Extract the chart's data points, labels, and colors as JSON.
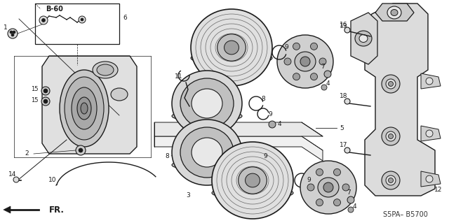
{
  "bg_color": "#ffffff",
  "diagram_code": "S5PA– B5700",
  "fr_label": "FR.",
  "bbox_label": "B-60",
  "dark": "#1a1a1a",
  "mid": "#666666",
  "light": "#aaaaaa",
  "lighter": "#dddddd"
}
